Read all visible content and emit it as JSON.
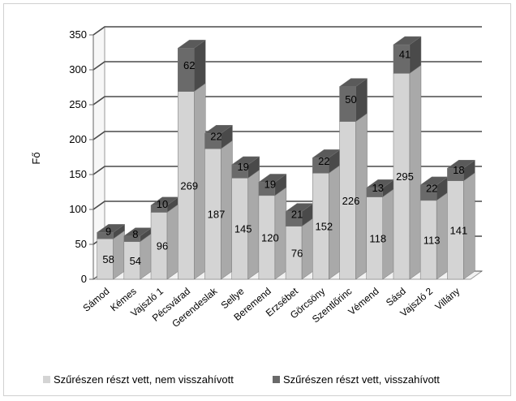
{
  "chart_data": {
    "type": "bar",
    "stacked": true,
    "three_d": true,
    "ylabel": "Fő",
    "xlabel": "",
    "ylim": [
      0,
      350
    ],
    "yticks": [
      0,
      50,
      100,
      150,
      200,
      250,
      300,
      350
    ],
    "grid": true,
    "legend_position": "bottom",
    "categories": [
      "Sámod",
      "Kémes",
      "Vajszló 1",
      "Pécsvárad",
      "Gerendeslak",
      "Sellye",
      "Beremend",
      "Erzsébet",
      "Görcsöny",
      "Szentlőrinc",
      "Vémend",
      "Sásd",
      "Vajszló 2",
      "Villány"
    ],
    "series": [
      {
        "name": "Szűrészen részt vett, nem visszahívott",
        "color": "#d4d4d4",
        "values": [
          58,
          54,
          96,
          269,
          187,
          145,
          120,
          76,
          152,
          226,
          118,
          295,
          113,
          141
        ]
      },
      {
        "name": "Szűrészen részt vett, visszahívott",
        "color": "#6a6a6a",
        "values": [
          9,
          8,
          10,
          62,
          22,
          19,
          19,
          21,
          22,
          50,
          13,
          41,
          22,
          18
        ]
      }
    ]
  }
}
